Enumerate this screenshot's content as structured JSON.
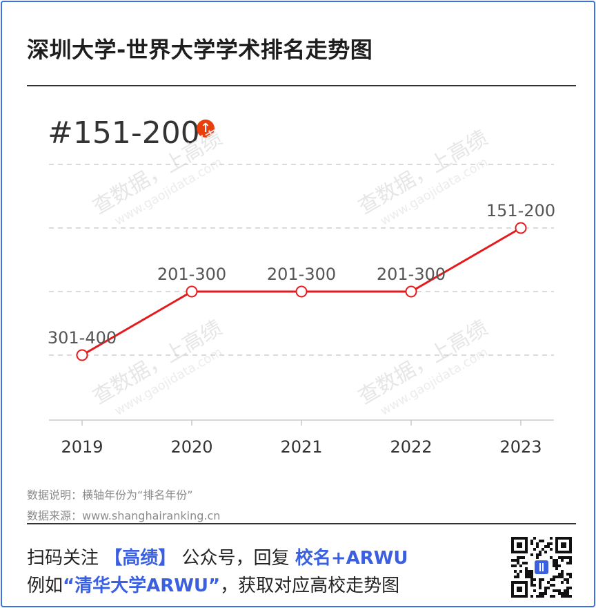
{
  "title": "深圳大学-世界大学学术排名走势图",
  "current_rank": "#151-200",
  "trend_icon": "arrow-up-icon",
  "colors": {
    "line": "#e41a1c",
    "accent": "#3a5fe0",
    "badge": "#e8400c",
    "frame": "#3f6fe6"
  },
  "chart_data": {
    "type": "line",
    "categories": [
      "2019",
      "2020",
      "2021",
      "2022",
      "2023"
    ],
    "series": [
      {
        "values": [
          4,
          3,
          3,
          3,
          2
        ],
        "labels": [
          "301-400",
          "201-300",
          "201-300",
          "201-300",
          "151-200"
        ]
      }
    ],
    "y_categories": [
      "151-200",
      "201-300",
      "301-400"
    ],
    "grid": true,
    "xlabel": "",
    "ylabel": ""
  },
  "watermark": {
    "text1": "查数据，上高绩",
    "text2": "www.gaojidata.com"
  },
  "notes": {
    "line1": "数据说明：横轴年份为“排名年份”",
    "line2": "数据来源：www.shanghairanking.cn"
  },
  "promo": {
    "l1_a": "扫码关注 ",
    "l1_brand": "【高绩】",
    "l1_b": " 公众号，回复 ",
    "l1_key": "校名+ARWU",
    "l2_a": "例如",
    "l2_example": "“清华大学ARWU”",
    "l2_b": "，获取对应高校走势图"
  },
  "qr_icon": "qr-code-icon"
}
